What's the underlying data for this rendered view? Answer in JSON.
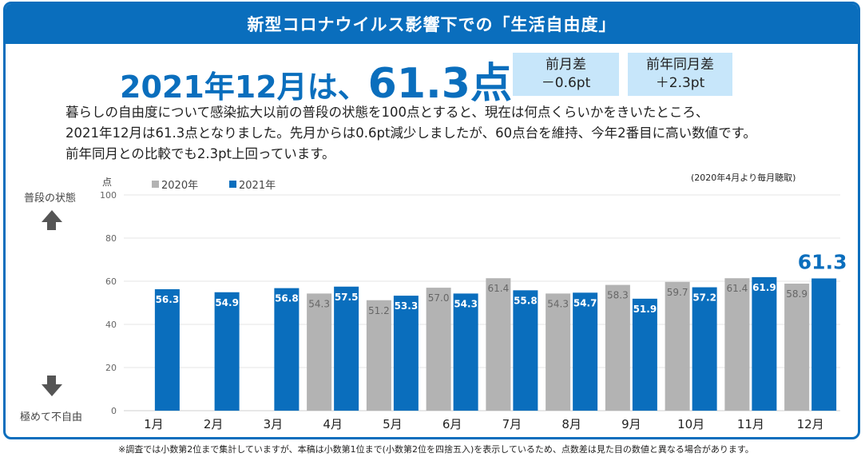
{
  "header": {
    "title": "新型コロナウイルス影響下での「生活自由度」"
  },
  "headline": {
    "prefix": "2021年12月は、",
    "value": "61.3点"
  },
  "diff_month": {
    "label": "前月差",
    "value": "－0.6pt"
  },
  "diff_year": {
    "label": "前年同月差",
    "value": "＋2.3pt"
  },
  "description": [
    "暮らしの自由度について感染拡大以前の普段の状態を100点とすると、現在は何点くらいかをきいたところ、",
    "2021年12月は61.3点となりました。先月からは0.6pt減少しましたが、60点台を維持、今年2番目に高い数値です。",
    "前年同月との比較でも2.3pt上回っています。"
  ],
  "side": {
    "top": "普段の状態",
    "bottom": "極めて不自由"
  },
  "note": "(2020年4月より毎月聴取)",
  "footnote": "※調査では小数第2位まで集計していますが、本稿は小数第1位まで(小数第2位を四捨五入)を表示しているため、点数差は見た目の数値と異なる場合があります。",
  "colors": {
    "accent": "#0a6ebd",
    "series_2020": "#b3b3b3",
    "series_2021": "#0a6ebd",
    "highlight_box": "#c7e6fa"
  },
  "chart_data": {
    "type": "bar",
    "title": "",
    "ylabel": "点",
    "xlabel": "",
    "ylim": [
      0,
      100
    ],
    "yticks": [
      0,
      20,
      40,
      60,
      80,
      100
    ],
    "categories": [
      "1月",
      "2月",
      "3月",
      "4月",
      "5月",
      "6月",
      "7月",
      "8月",
      "9月",
      "10月",
      "11月",
      "12月"
    ],
    "series": [
      {
        "name": "2020年",
        "values": [
          null,
          null,
          null,
          54.3,
          51.2,
          57.0,
          61.4,
          54.3,
          58.3,
          59.7,
          61.4,
          58.9
        ]
      },
      {
        "name": "2021年",
        "values": [
          56.3,
          54.9,
          56.8,
          57.5,
          53.3,
          54.3,
          55.8,
          54.7,
          51.9,
          57.2,
          61.9,
          61.3
        ]
      }
    ],
    "highlight_label": "61.3",
    "legend_position": "top-left"
  }
}
